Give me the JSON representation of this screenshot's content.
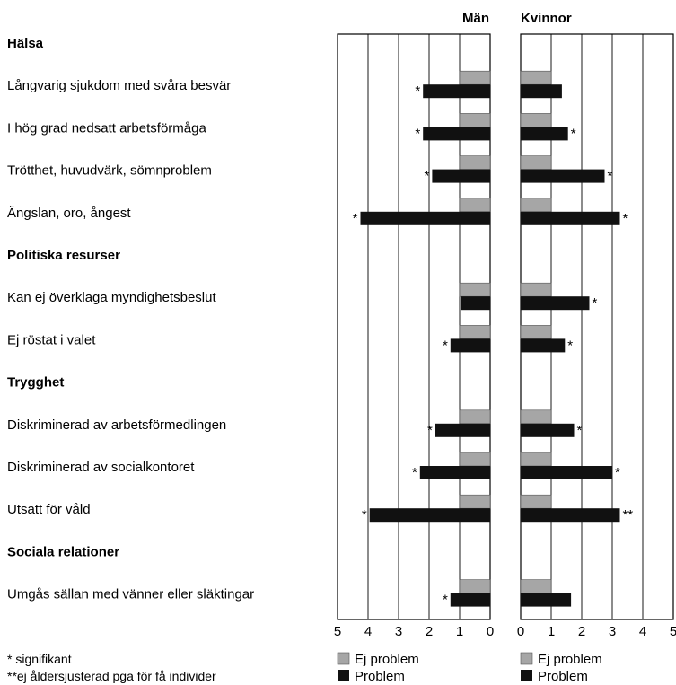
{
  "colors": {
    "ej_problem": "#a6a6a6",
    "problem": "#111111",
    "grid": "#000000"
  },
  "chart_data": {
    "type": "bar",
    "orientation": "horizontal",
    "panels": [
      {
        "name": "Män",
        "axis": "reversed",
        "xlim": [
          0,
          5
        ],
        "ticks": [
          "5",
          "4",
          "3",
          "2",
          "1",
          "0"
        ]
      },
      {
        "name": "Kvinnor",
        "axis": "normal",
        "xlim": [
          0,
          5
        ],
        "ticks": [
          "0",
          "1",
          "2",
          "3",
          "4",
          "5"
        ]
      }
    ],
    "sections": [
      {
        "label": "Hälsa",
        "items": [
          {
            "label": "Långvarig sjukdom med svåra besvär",
            "man": {
              "ej_problem": 1,
              "problem": 2.2,
              "mark": "*"
            },
            "kvinna": {
              "ej_problem": 1,
              "problem": 1.35,
              "mark": ""
            }
          },
          {
            "label": "I hög grad nedsatt arbetsförmåga",
            "man": {
              "ej_problem": 1,
              "problem": 2.2,
              "mark": "*"
            },
            "kvinna": {
              "ej_problem": 1,
              "problem": 1.55,
              "mark": "*"
            }
          },
          {
            "label": "Trötthet, huvudvärk, sömnproblem",
            "man": {
              "ej_problem": 1,
              "problem": 1.9,
              "mark": "*"
            },
            "kvinna": {
              "ej_problem": 1,
              "problem": 2.75,
              "mark": "*"
            }
          },
          {
            "label": "Ängslan, oro, ångest",
            "man": {
              "ej_problem": 1,
              "problem": 4.25,
              "mark": "*"
            },
            "kvinna": {
              "ej_problem": 1,
              "problem": 3.25,
              "mark": "*"
            }
          }
        ]
      },
      {
        "label": "Politiska resurser",
        "items": [
          {
            "label": "Kan ej överklaga myndighetsbeslut",
            "man": {
              "ej_problem": 1,
              "problem": 0.95,
              "mark": ""
            },
            "kvinna": {
              "ej_problem": 1,
              "problem": 2.25,
              "mark": "*"
            }
          },
          {
            "label": "Ej röstat i valet",
            "man": {
              "ej_problem": 1,
              "problem": 1.3,
              "mark": "*"
            },
            "kvinna": {
              "ej_problem": 1,
              "problem": 1.45,
              "mark": "*"
            }
          }
        ]
      },
      {
        "label": "Trygghet",
        "items": [
          {
            "label": "Diskriminerad av arbetsförmedlingen",
            "man": {
              "ej_problem": 1,
              "problem": 1.8,
              "mark": "*"
            },
            "kvinna": {
              "ej_problem": 1,
              "problem": 1.75,
              "mark": "*"
            }
          },
          {
            "label": "Diskriminerad av socialkontoret",
            "man": {
              "ej_problem": 1,
              "problem": 2.3,
              "mark": "*"
            },
            "kvinna": {
              "ej_problem": 1,
              "problem": 3.0,
              "mark": "*"
            }
          },
          {
            "label": "Utsatt för våld",
            "man": {
              "ej_problem": 1,
              "problem": 3.95,
              "mark": "*"
            },
            "kvinna": {
              "ej_problem": 1,
              "problem": 3.25,
              "mark": "**"
            }
          }
        ]
      },
      {
        "label": "Sociala relationer",
        "items": [
          {
            "label": "Umgås sällan med vänner eller släktingar",
            "man": {
              "ej_problem": 1,
              "problem": 1.3,
              "mark": "*"
            },
            "kvinna": {
              "ej_problem": 1,
              "problem": 1.65,
              "mark": ""
            }
          }
        ]
      }
    ],
    "legend": {
      "ej_problem": "Ej problem",
      "problem": "Problem"
    },
    "notes": [
      "* signifikant",
      "**ej åldersjusterad pga för få individer"
    ]
  }
}
